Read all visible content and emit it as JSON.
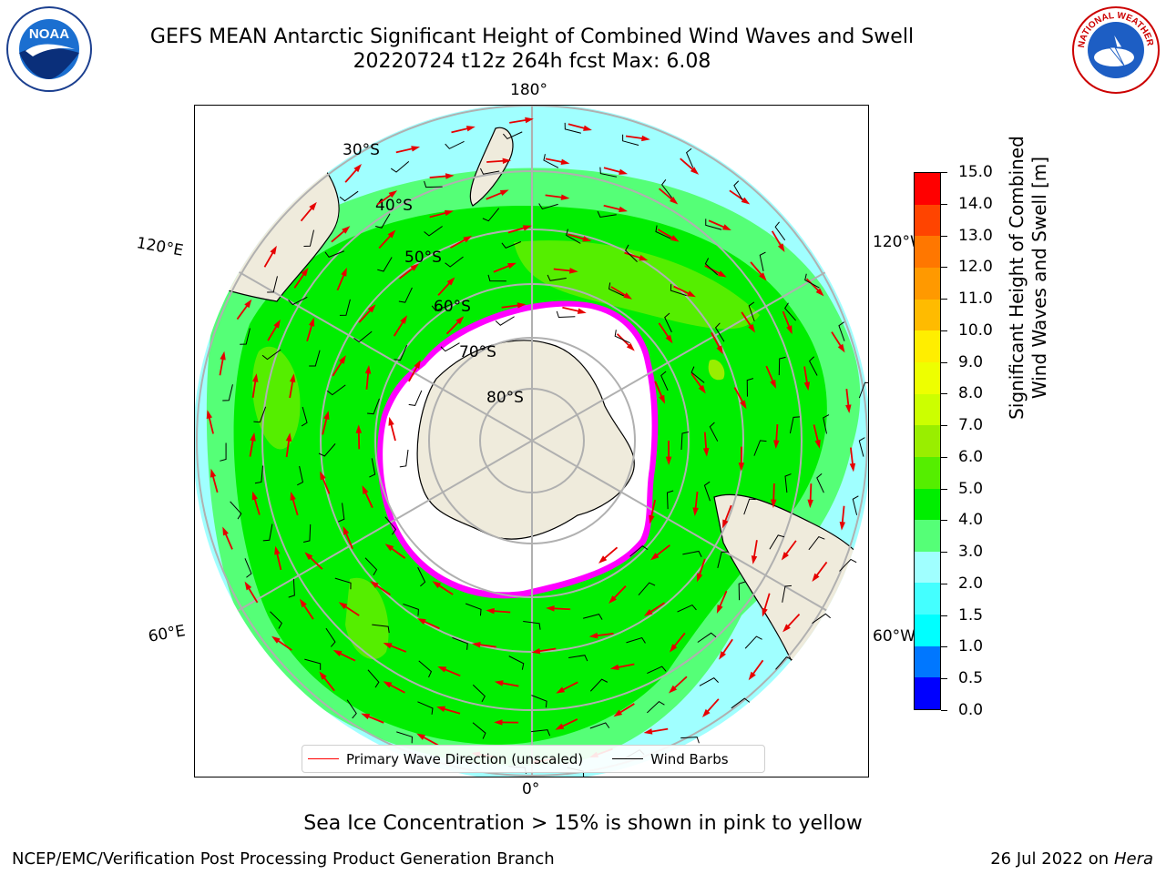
{
  "header": {
    "title_line1": "GEFS MEAN Antarctic Significant Height of Combined Wind Waves and Swell",
    "title_line2": "20220724 t12z 264h fcst   Max: 6.08"
  },
  "logos": {
    "left": "noaa-logo",
    "left_text": "NOAA",
    "right": "nws-logo",
    "right_text": "NATIONAL WEATHER SERVICE"
  },
  "map": {
    "projection": "south-polar-stereographic",
    "longitude_labels": {
      "top": "180°",
      "bottom": "0°",
      "upper_left": "120°E",
      "lower_left": "60°E",
      "upper_right": "120°W",
      "lower_right": "60°W"
    },
    "latitude_labels": [
      "30°S",
      "40°S",
      "50°S",
      "60°S",
      "70°S",
      "80°S"
    ],
    "land_color": "#efebdc",
    "ice_colors": [
      "#ff00ff",
      "#ff9900",
      "#ffff00"
    ]
  },
  "legend": {
    "wave_label": "Primary Wave Direction (unscaled)",
    "wave_color": "#ff0000",
    "wind_label": "Wind Barbs",
    "wind_color": "#000000"
  },
  "colorbar": {
    "title_line1": "Significant Height of Combined",
    "title_line2": "Wind Waves and Swell [m]",
    "ticks": [
      "0.0",
      "0.5",
      "1.0",
      "1.5",
      "2.0",
      "3.0",
      "4.0",
      "5.0",
      "6.0",
      "7.0",
      "8.0",
      "9.0",
      "10.0",
      "11.0",
      "12.0",
      "13.0",
      "14.0",
      "15.0"
    ],
    "colors": [
      "#0000ff",
      "#0077ff",
      "#00ffff",
      "#44ffff",
      "#a0ffff",
      "#55ff77",
      "#00ee00",
      "#55ee00",
      "#99ee00",
      "#ccff00",
      "#eeff00",
      "#ffee00",
      "#ffbb00",
      "#ff9900",
      "#ff7700",
      "#ff4400",
      "#ff0000"
    ]
  },
  "chart_data": {
    "type": "heatmap",
    "variable": "Significant Height of Combined Wind Waves and Swell",
    "units": "m",
    "max_value": 6.08,
    "run": "20220724 t12z",
    "forecast_hour": "264h",
    "scale_range": [
      0,
      15
    ]
  },
  "footer": {
    "note": "Sea Ice Concentration > 15% is shown in pink to yellow",
    "credit": "NCEP/EMC/Verification Post Processing Product Generation Branch",
    "date_text": "26 Jul 2022 on ",
    "host": "Hera"
  }
}
